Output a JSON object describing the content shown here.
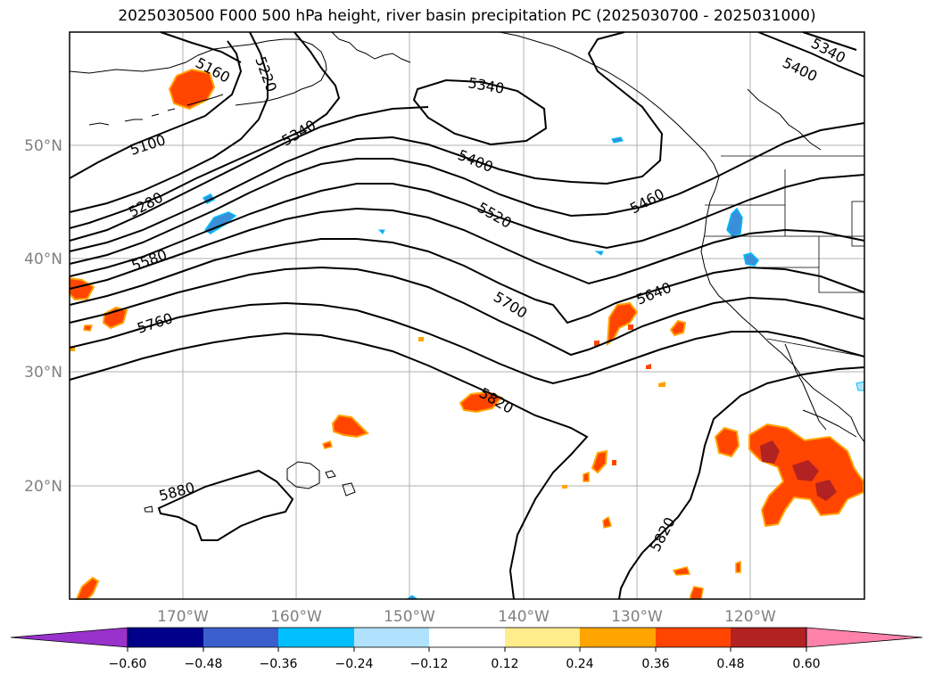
{
  "title": "2025030500 F000 500 hPa height, river basin precipitation PC (2025030700 - 2025031000)",
  "map": {
    "projection": "plate carree",
    "grid": true,
    "lat_labels": [
      "50°N",
      "40°N",
      "30°N",
      "20°N"
    ],
    "lon_labels": [
      "170°W",
      "160°W",
      "150°W",
      "140°W",
      "130°W",
      "120°W"
    ]
  },
  "contours": {
    "variable": "500 hPa height",
    "labels": [
      "5160",
      "5220",
      "5100",
      "5340",
      "5280",
      "5580",
      "5760",
      "5340",
      "5400",
      "5520",
      "5700",
      "5460",
      "5640",
      "5820",
      "5880",
      "5820",
      "5340",
      "5400"
    ]
  },
  "shading": {
    "variable": "river basin precipitation PC",
    "colors": {
      "purple": "#9932cc",
      "navy": "#00008b",
      "royal": "#3a5fcd",
      "sky": "#00bfff",
      "pale_blue": "#b0e2ff",
      "white": "#ffffff",
      "light_yellow": "#ffec8b",
      "orange": "#ffa500",
      "red_orange": "#ff4500",
      "dark_red": "#b22222",
      "pink": "#ff82ab"
    }
  },
  "colorbar": {
    "ticks": [
      "−0.60",
      "−0.48",
      "−0.36",
      "−0.24",
      "−0.12",
      "0.12",
      "0.24",
      "0.36",
      "0.48",
      "0.60"
    ],
    "extend": "both"
  }
}
